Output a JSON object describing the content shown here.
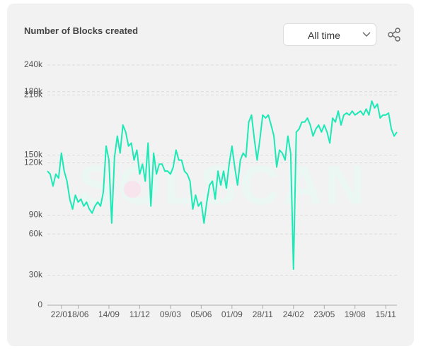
{
  "dropdown": {
    "label": "All time"
  },
  "watermark": "SOLSCAN",
  "chart_data": {
    "type": "line",
    "title": "Number of Blocks created",
    "categories": [
      null,
      null,
      null,
      null,
      null,
      "22/01",
      null,
      null,
      null,
      null,
      null,
      "18/06",
      null,
      null,
      null,
      null,
      null,
      null,
      null,
      null,
      null,
      null,
      "14/09",
      null,
      null,
      null,
      null,
      null,
      null,
      null,
      null,
      null,
      null,
      "11/12",
      null,
      null,
      null,
      null,
      null,
      null,
      null,
      null,
      null,
      null,
      "09/03",
      null,
      null,
      null,
      null,
      null,
      null,
      null,
      null,
      null,
      null,
      "05/06",
      null,
      null,
      null,
      null,
      null,
      null,
      null,
      null,
      null,
      null,
      "01/09",
      null,
      null,
      null,
      null,
      null,
      null,
      null,
      null,
      null,
      null,
      "28/11",
      null,
      null,
      null,
      null,
      null,
      null,
      null,
      null,
      null,
      null,
      "24/02",
      null,
      null,
      null,
      null,
      null,
      null,
      null,
      null,
      null,
      null,
      "23/05",
      null,
      null,
      null,
      null,
      null,
      null,
      null,
      null,
      null,
      null,
      "19/08",
      null,
      null,
      null,
      null,
      null,
      null,
      null,
      null,
      null,
      null,
      "15/11",
      null,
      null,
      null,
      null
    ],
    "values": [
      134000,
      131000,
      119000,
      131000,
      127000,
      152000,
      134000,
      124000,
      106000,
      96000,
      110000,
      103000,
      106000,
      99000,
      103000,
      96000,
      92000,
      99000,
      103000,
      99000,
      113000,
      159000,
      145000,
      82000,
      148000,
      169000,
      152000,
      180000,
      173000,
      159000,
      162000,
      145000,
      155000,
      131000,
      141000,
      124000,
      162000,
      99000,
      152000,
      131000,
      141000,
      141000,
      134000,
      134000,
      131000,
      138000,
      155000,
      145000,
      145000,
      134000,
      131000,
      124000,
      96000,
      110000,
      99000,
      103000,
      82000,
      103000,
      120000,
      124000,
      106000,
      134000,
      120000,
      134000,
      117000,
      141000,
      159000,
      138000,
      120000,
      145000,
      152000,
      148000,
      183000,
      190000,
      166000,
      145000,
      166000,
      190000,
      187000,
      190000,
      180000,
      169000,
      138000,
      155000,
      152000,
      145000,
      169000,
      152000,
      36000,
      173000,
      176000,
      183000,
      183000,
      187000,
      180000,
      169000,
      176000,
      180000,
      173000,
      180000,
      173000,
      162000,
      187000,
      183000,
      194000,
      180000,
      190000,
      192000,
      190000,
      194000,
      190000,
      192000,
      194000,
      190000,
      196000,
      190000,
      204000,
      197000,
      201000,
      187000,
      190000,
      190000,
      192000,
      176000,
      169000,
      173000
    ],
    "color": "#1de9b6",
    "ylim": [
      0,
      240000
    ],
    "yticks": [
      0,
      {
        "value": 30000,
        "label": "30k"
      },
      {
        "value": 90000,
        "label": "90k"
      },
      {
        "value": 150000,
        "label": "150k"
      },
      {
        "value": 210000,
        "label": "210k"
      },
      {
        "value": 240000,
        "label": "240k"
      }
    ],
    "y2lim": [
      0,
      202500
    ],
    "y2ticks": [
      {
        "value": 60000,
        "label": "60k"
      },
      {
        "value": 120000,
        "label": "120k"
      },
      {
        "value": 180000,
        "label": "180k"
      }
    ],
    "grid": true
  }
}
